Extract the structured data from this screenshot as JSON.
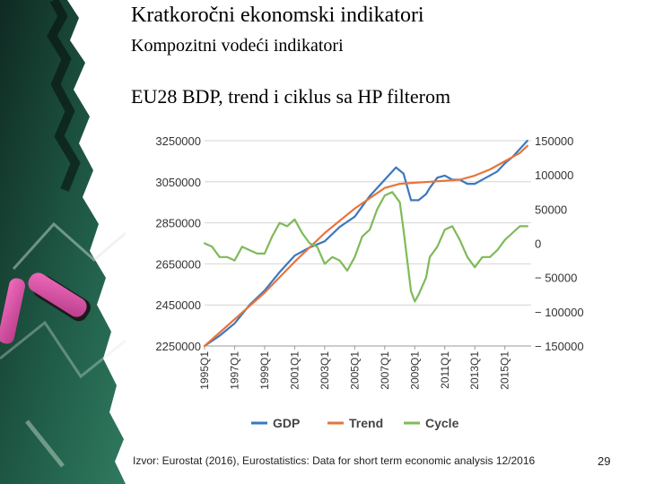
{
  "slide": {
    "title": "Kratkoročni ekonomski indikatori",
    "subtitle": "Kompozitni vodeći indikatori",
    "heading": "EU28 BDP, trend i ciklus sa HP filterom",
    "source": "Izvor: Eurostat (2016), Eurostatistics: Data for short term economic analysis 12/2016",
    "page_number": "29"
  },
  "chart_data": {
    "type": "line",
    "title": "",
    "xlabel": "",
    "ylabel": "",
    "x_tick_labels": [
      "1995Q1",
      "1997Q1",
      "1999Q1",
      "2001Q1",
      "2003Q1",
      "2005Q1",
      "2007Q1",
      "2009Q1",
      "2011Q1",
      "2013Q1",
      "2015Q1"
    ],
    "y_left_tick_labels": [
      "3250000",
      "3050000",
      "2850000",
      "2650000",
      "2450000",
      "2250000"
    ],
    "y_right_tick_labels": [
      "150000",
      "100000",
      "50000",
      "0",
      "− 50000",
      "− 100000",
      "− 150000"
    ],
    "y_left_range": [
      2250000,
      3250000
    ],
    "y_right_range": [
      -150000,
      150000
    ],
    "grid": true,
    "legend_position": "bottom",
    "x_range": [
      1995.0,
      2016.75
    ],
    "series": [
      {
        "name": "GDP",
        "axis": "left",
        "color": "#3b78c0",
        "x": [
          1995.0,
          1996.0,
          1997.0,
          1998.0,
          1999.0,
          2000.0,
          2000.5,
          2001.0,
          2002.0,
          2003.0,
          2004.0,
          2005.0,
          2006.0,
          2007.0,
          2007.75,
          2008.25,
          2008.75,
          2009.25,
          2009.75,
          2010.0,
          2010.5,
          2011.0,
          2011.5,
          2012.0,
          2012.5,
          2013.0,
          2013.75,
          2014.5,
          2015.0,
          2015.5,
          2016.0,
          2016.5
        ],
        "y": [
          2250000,
          2300000,
          2360000,
          2450000,
          2520000,
          2610000,
          2650000,
          2690000,
          2730000,
          2760000,
          2830000,
          2880000,
          2980000,
          3060000,
          3120000,
          3090000,
          2960000,
          2960000,
          2990000,
          3020000,
          3070000,
          3080000,
          3060000,
          3060000,
          3040000,
          3040000,
          3070000,
          3100000,
          3140000,
          3170000,
          3210000,
          3250000
        ]
      },
      {
        "name": "Trend",
        "axis": "left",
        "color": "#e8743b",
        "x": [
          1995.0,
          1997.0,
          1999.0,
          2001.0,
          2003.0,
          2005.0,
          2007.0,
          2008.0,
          2009.0,
          2010.0,
          2011.0,
          2012.0,
          2013.0,
          2014.0,
          2015.0,
          2016.0,
          2016.5
        ],
        "y": [
          2250000,
          2380000,
          2510000,
          2660000,
          2800000,
          2920000,
          3020000,
          3040000,
          3045000,
          3050000,
          3055000,
          3060000,
          3080000,
          3110000,
          3150000,
          3190000,
          3225000
        ]
      },
      {
        "name": "Cycle",
        "axis": "right",
        "color": "#7fba5a",
        "x": [
          1995.0,
          1995.5,
          1996.0,
          1996.5,
          1997.0,
          1997.5,
          1998.0,
          1998.5,
          1999.0,
          1999.5,
          2000.0,
          2000.5,
          2001.0,
          2001.5,
          2002.0,
          2002.5,
          2003.0,
          2003.5,
          2004.0,
          2004.5,
          2005.0,
          2005.5,
          2006.0,
          2006.5,
          2007.0,
          2007.5,
          2008.0,
          2008.25,
          2008.75,
          2009.0,
          2009.25,
          2009.75,
          2010.0,
          2010.5,
          2011.0,
          2011.5,
          2012.0,
          2012.5,
          2013.0,
          2013.5,
          2014.0,
          2014.5,
          2015.0,
          2015.5,
          2016.0,
          2016.5
        ],
        "y": [
          0,
          -5000,
          -20000,
          -20000,
          -25000,
          -5000,
          -10000,
          -15000,
          -15000,
          10000,
          30000,
          25000,
          35000,
          15000,
          0,
          -5000,
          -30000,
          -20000,
          -25000,
          -40000,
          -20000,
          10000,
          20000,
          50000,
          70000,
          75000,
          60000,
          20000,
          -70000,
          -85000,
          -75000,
          -50000,
          -20000,
          -5000,
          20000,
          25000,
          5000,
          -20000,
          -35000,
          -20000,
          -20000,
          -10000,
          5000,
          15000,
          25000,
          25000
        ]
      }
    ]
  }
}
